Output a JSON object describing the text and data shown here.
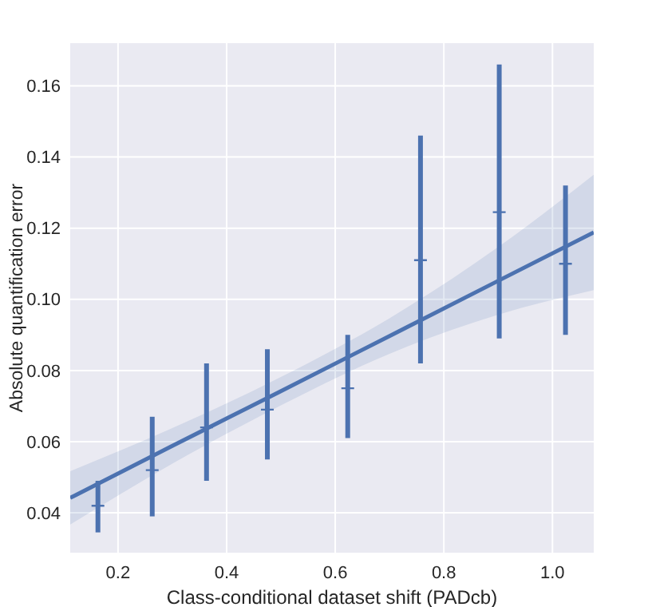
{
  "chart_data": {
    "type": "scatter",
    "xlabel": "Class-conditional dataset shift (PADcb)",
    "ylabel": "Absolute quantification error",
    "xlim": [
      0.112,
      1.076
    ],
    "ylim": [
      0.0288,
      0.172
    ],
    "xticks": [
      0.2,
      0.4,
      0.6,
      0.8,
      {
        "value": 1.0,
        "label": "1.0"
      }
    ],
    "yticks": [
      0.04,
      0.06,
      0.08,
      {
        "value": 0.1,
        "label": "0.10"
      },
      0.12,
      0.14,
      0.16
    ],
    "grid": true,
    "series": [
      {
        "marker": "cross",
        "color": "#4c72b0",
        "x": [
          0.163,
          0.263,
          0.363,
          0.475,
          0.623,
          0.757,
          0.902,
          1.024
        ],
        "values": [
          0.042,
          0.052,
          0.064,
          0.069,
          0.075,
          0.111,
          0.1245,
          0.11
        ],
        "errors": [
          [
            0.0345,
            0.049
          ],
          [
            0.039,
            0.067
          ],
          [
            0.049,
            0.082
          ],
          [
            0.055,
            0.086
          ],
          [
            0.061,
            0.09
          ],
          [
            0.082,
            0.146
          ],
          [
            0.089,
            0.166
          ],
          [
            0.09,
            0.132
          ]
        ]
      },
      {
        "type": "line",
        "marker": "none",
        "color": "#4c72b0",
        "x": [
          0.112,
          0.3,
          0.5,
          0.7,
          0.9,
          1.076
        ],
        "values": [
          0.0442,
          0.0588,
          0.0742,
          0.0897,
          0.1052,
          0.1188
        ],
        "lower": [
          0.0367,
          0.0538,
          0.0702,
          0.0847,
          0.0957,
          0.1026
        ],
        "upper": [
          0.0517,
          0.0638,
          0.0782,
          0.0947,
          0.1147,
          0.135
        ]
      }
    ]
  }
}
